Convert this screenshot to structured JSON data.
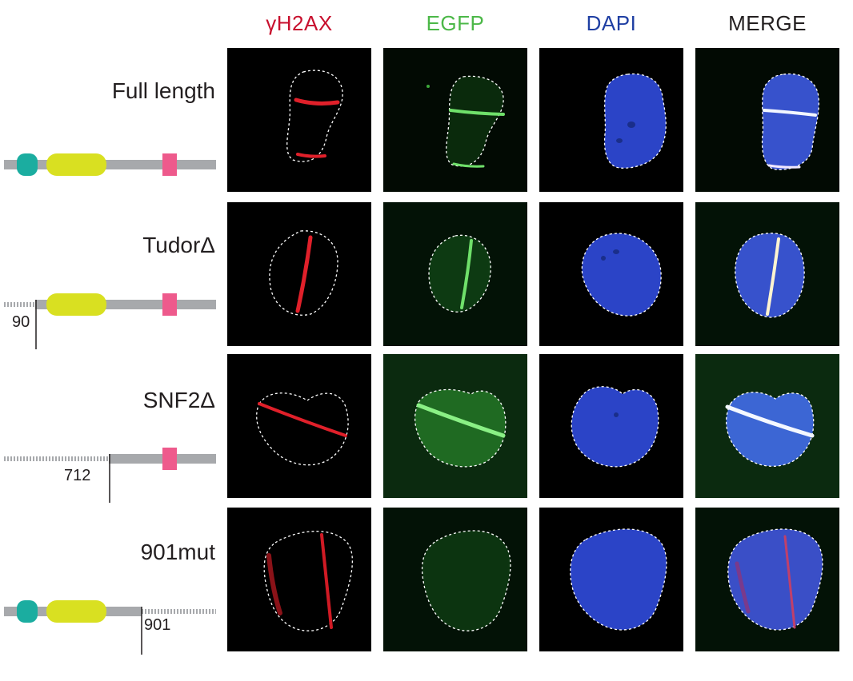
{
  "columns": [
    {
      "label": "γH2AX",
      "color": "#c8102e"
    },
    {
      "label": "EGFP",
      "color": "#4cb848"
    },
    {
      "label": "DAPI",
      "color": "#1f3fa3"
    },
    {
      "label": "MERGE",
      "color": "#231f20"
    }
  ],
  "rows": [
    {
      "label": "Full length",
      "residue": ""
    },
    {
      "label": "TudorΔ",
      "residue": "90"
    },
    {
      "label": "SNF2Δ",
      "residue": "712"
    },
    {
      "label": "901mut",
      "residue": "901"
    }
  ],
  "colors": {
    "tudor_domain": "#1bada0",
    "snf2_domain": "#d9e021",
    "motif": "#ee5a8c",
    "backbone": "#a7a9ac",
    "deleted": "#a7a9ac"
  }
}
